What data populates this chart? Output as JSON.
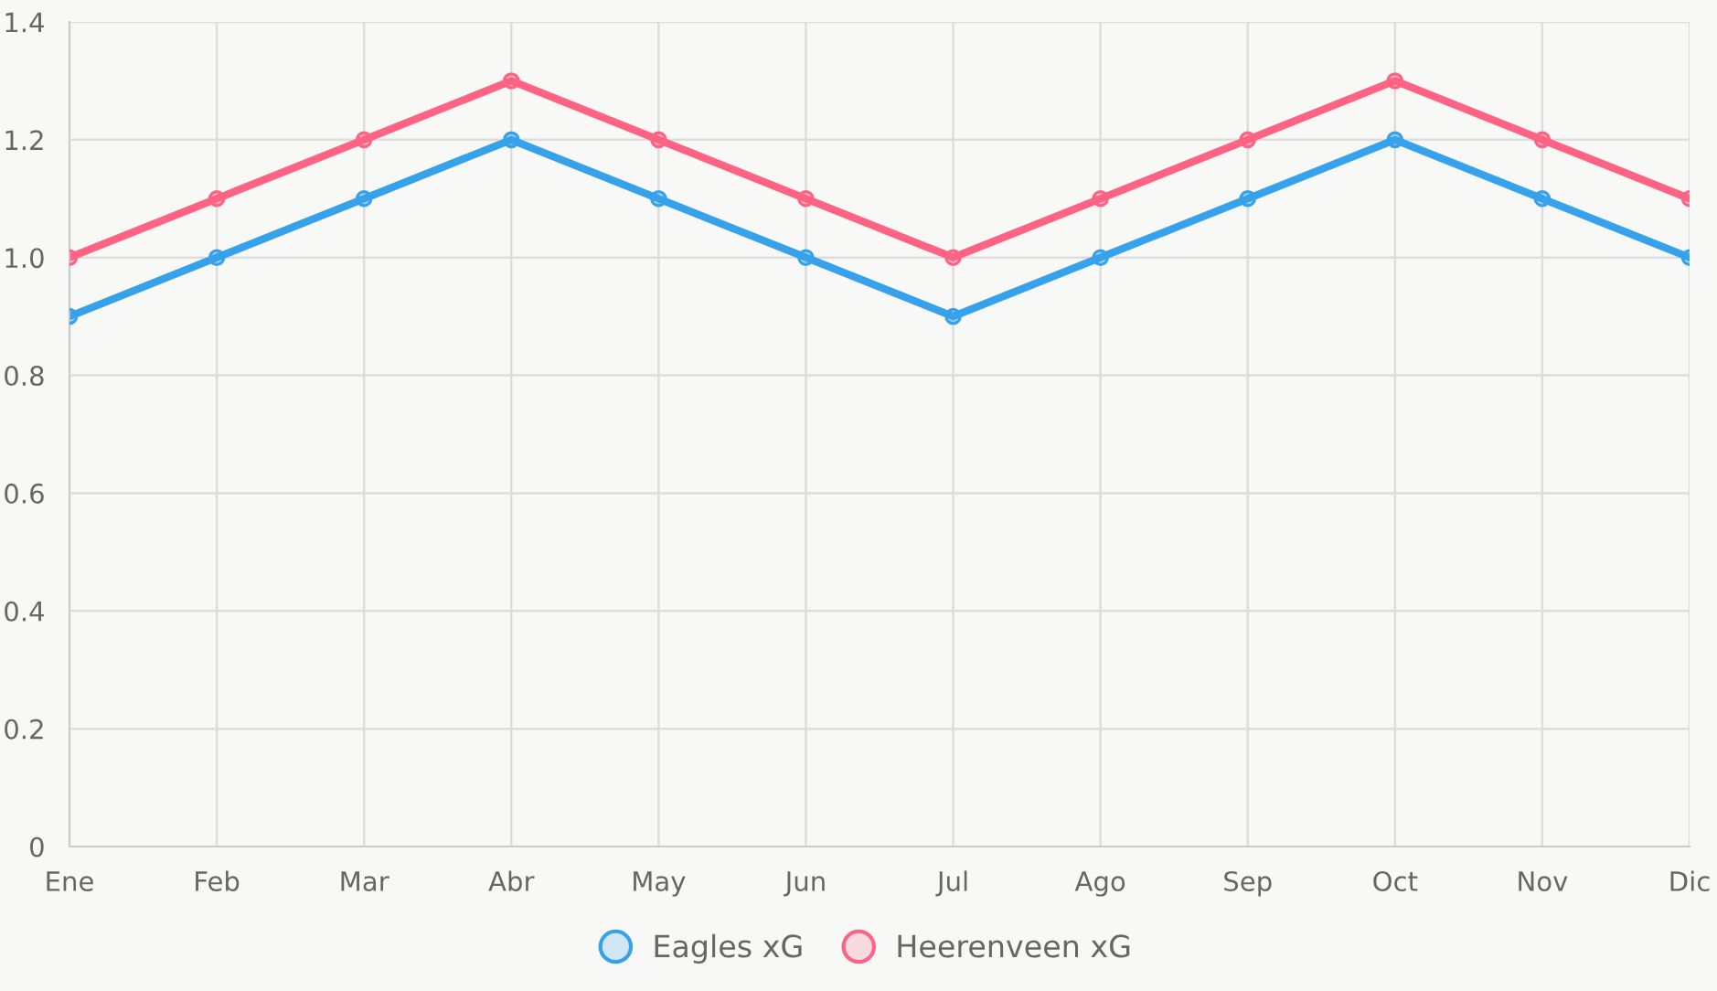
{
  "chart_data": {
    "type": "line",
    "categories": [
      "Ene",
      "Feb",
      "Mar",
      "Abr",
      "May",
      "Jun",
      "Jul",
      "Ago",
      "Sep",
      "Oct",
      "Nov",
      "Dic"
    ],
    "series": [
      {
        "name": "Eagles xG",
        "color": "#36a2eb",
        "values": [
          0.9,
          1.0,
          1.1,
          1.2,
          1.1,
          1.0,
          0.9,
          1.0,
          1.1,
          1.2,
          1.1,
          1.0
        ]
      },
      {
        "name": "Heerenveen xG",
        "color": "#ff6384",
        "values": [
          1.0,
          1.1,
          1.2,
          1.3,
          1.2,
          1.1,
          1.0,
          1.1,
          1.2,
          1.3,
          1.2,
          1.1
        ]
      }
    ],
    "ylim": [
      0,
      1.4
    ],
    "yticks": [
      0,
      0.2,
      0.4,
      0.6,
      0.8,
      {
        "value": 1,
        "label": "1.0"
      },
      1.2,
      1.4
    ],
    "grid": true,
    "legend": "bottom",
    "marker": "circle",
    "line_style": "solid"
  }
}
